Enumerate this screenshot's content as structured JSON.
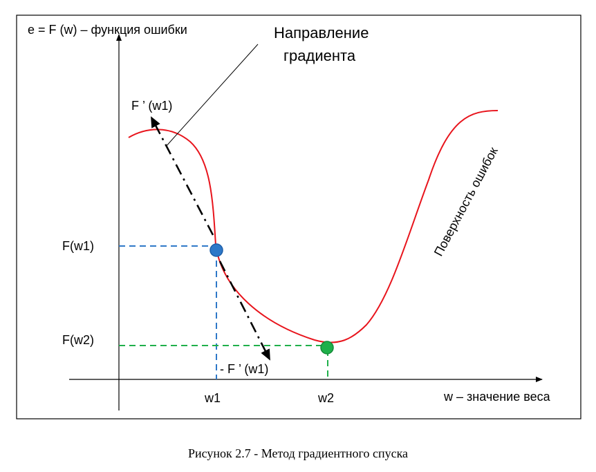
{
  "y_axis_label": "e = F (w) – функция ошибки",
  "x_axis_label": "w – значение веса",
  "gradient_direction_label": "Направление\nградиента",
  "gradient_label": "F ’ (w1)",
  "neg_gradient_label": "- F ’ (w1)",
  "surface_label": "Поверхность ошибок",
  "y_ticks": {
    "f_w1": "F(w1)",
    "f_w2": "F(w2)"
  },
  "x_ticks": {
    "w1": "w1",
    "w2": "w2"
  },
  "caption": "Рисунок 2.7 - Метод градиентного спуска",
  "colors": {
    "curve": "#e8141c",
    "w1_point": "#2e78c8",
    "w2_point": "#1fb04a",
    "w1_guides": "#2e78c8",
    "w2_guides": "#1fb04a",
    "axes": "#000000"
  }
}
